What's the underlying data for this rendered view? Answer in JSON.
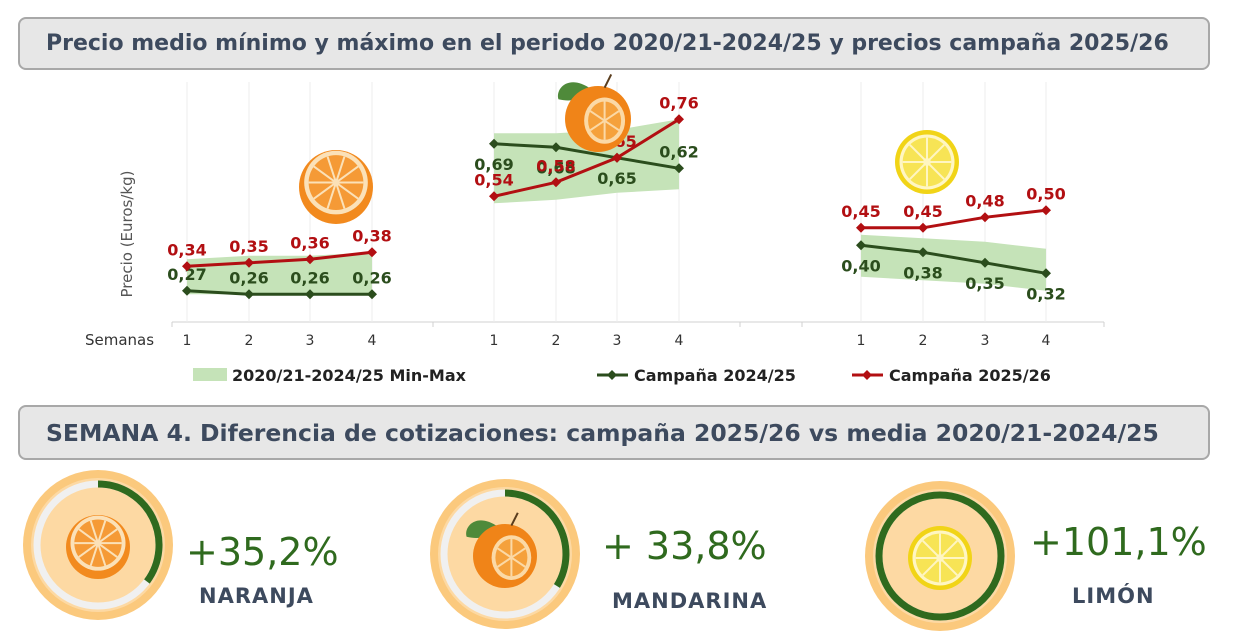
{
  "header": {
    "title": "Precio medio mínimo y máximo en el periodo 2020/21-2024/25 y precios campaña 2025/26"
  },
  "chart_data": {
    "type": "line",
    "ylabel": "Precio (Euros/kg)",
    "xlabel": "Semanas",
    "categories": [
      "1",
      "2",
      "3",
      "4"
    ],
    "colors": {
      "range": "#c5e3b8",
      "campaign_2024": "#2b4d1d",
      "campaign_2025": "#b20f12"
    },
    "legend": {
      "position": "bottom",
      "items": [
        "2020/21-2024/25 Min-Max",
        "Campaña 2024/25",
        "Campaña 2025/26"
      ]
    },
    "groups": [
      {
        "product": "naranja",
        "icon": "orange-half-icon",
        "range_min": [
          0.26,
          0.26,
          0.26,
          0.26
        ],
        "range_max": [
          0.36,
          0.37,
          0.37,
          0.38
        ],
        "series": [
          {
            "name": "Campaña 2024/25",
            "values": [
              0.27,
              0.26,
              0.26,
              0.26
            ]
          },
          {
            "name": "Campaña 2025/26",
            "values": [
              0.34,
              0.35,
              0.36,
              0.38
            ]
          }
        ]
      },
      {
        "product": "mandarina",
        "icon": "mandarin-icon",
        "range_min": [
          0.52,
          0.53,
          0.55,
          0.56
        ],
        "range_max": [
          0.72,
          0.72,
          0.73,
          0.76
        ],
        "series": [
          {
            "name": "Campaña 2024/25",
            "values": [
              0.69,
              0.68,
              0.65,
              0.62
            ]
          },
          {
            "name": "Campaña 2025/26",
            "values": [
              0.54,
              0.58,
              0.65,
              0.76
            ]
          }
        ]
      },
      {
        "product": "limón",
        "icon": "lemon-slice-icon",
        "range_min": [
          0.31,
          0.3,
          0.29,
          0.27
        ],
        "range_max": [
          0.43,
          0.42,
          0.41,
          0.39
        ],
        "series": [
          {
            "name": "Campaña 2024/25",
            "values": [
              0.4,
              0.38,
              0.35,
              0.32
            ]
          },
          {
            "name": "Campaña 2025/26",
            "values": [
              0.45,
              0.45,
              0.48,
              0.5
            ]
          }
        ]
      }
    ]
  },
  "section2": {
    "title": "SEMANA 4. Diferencia de cotizaciones: campaña 2025/26 vs media 2020/21-2024/25"
  },
  "stats": [
    {
      "pct": "+35,2%",
      "name": "NARANJA",
      "icon": "orange-half-icon",
      "progress": 0.352
    },
    {
      "pct": "+ 33,8%",
      "name": "MANDARINA",
      "icon": "mandarin-icon",
      "progress": 0.338
    },
    {
      "pct": "+101,1%",
      "name": "LIMÓN",
      "icon": "lemon-slice-icon",
      "progress": 1.0
    }
  ]
}
